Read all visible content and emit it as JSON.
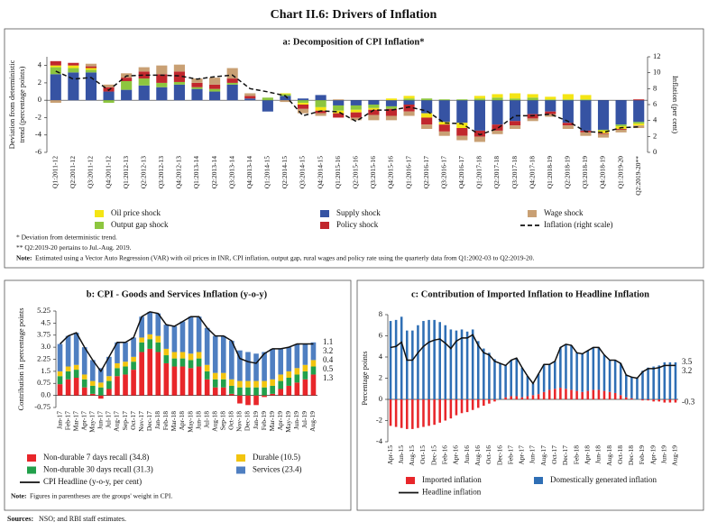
{
  "title": "Chart II.6: Drivers of Inflation",
  "sources_label": "Sources:",
  "sources": "NSO; and RBI staff estimates.",
  "chart_data": [
    {
      "type": "bar",
      "stacked": true,
      "title": "a: Decomposition of CPI Inflation*",
      "y_label": [
        "Deviation from deterministic",
        "trend (percentage points)"
      ],
      "y2_label": "Inflation (per cent)",
      "categories": [
        "Q1:2011-12",
        "Q2:2011-12",
        "Q3:2011-12",
        "Q4:2011-12",
        "Q1:2012-13",
        "Q2:2012-13",
        "Q3:2012-13",
        "Q4:2012-13",
        "Q1:2013-14",
        "Q2:2013-14",
        "Q3:2013-14",
        "Q4:2013-14",
        "Q1:2014-15",
        "Q2:2014-15",
        "Q3:2014-15",
        "Q4:2014-15",
        "Q1:2015-16",
        "Q2:2015-16",
        "Q3:2015-16",
        "Q4:2015-16",
        "Q1:2016-17",
        "Q2:2016-17",
        "Q3:2016-17",
        "Q4:2016-17",
        "Q1:2017-18",
        "Q2:2017-18",
        "Q3:2017-18",
        "Q4:2017-18",
        "Q1:2018-19",
        "Q2:2018-19",
        "Q3:2018-19",
        "Q4:2018-19",
        "Q1:2019-20",
        "Q2:2019-20**"
      ],
      "series": [
        {
          "name": "Supply shock",
          "color": "#3653a3",
          "values": [
            3.0,
            3.2,
            3.2,
            1.0,
            1.2,
            1.7,
            1.5,
            1.8,
            1.3,
            1.0,
            1.8,
            0.2,
            -1.3,
            0.5,
            0.2,
            0.6,
            -0.6,
            -0.6,
            -0.5,
            -0.7,
            -0.5,
            -1.5,
            -2.5,
            -2.6,
            -3.5,
            -2.8,
            -2.4,
            -1.6,
            -1.3,
            -2.6,
            -3.5,
            -3.4,
            -2.8,
            -2.5
          ]
        },
        {
          "name": "Output gap shock",
          "color": "#8dc63f",
          "values": [
            0.8,
            0.5,
            0.3,
            -0.3,
            1.0,
            0.8,
            0.5,
            0.3,
            0.2,
            0.3,
            0.2,
            0.0,
            0.3,
            0.2,
            -0.3,
            -0.8,
            -0.6,
            -0.5,
            -0.4,
            -0.3,
            0.2,
            0.2,
            0.1,
            0.1,
            0.2,
            0.3,
            0.2,
            0.3,
            0.1,
            0.1,
            0.1,
            -0.1,
            -0.2,
            -0.2
          ]
        },
        {
          "name": "Oil price shock",
          "color": "#f4e514",
          "values": [
            0.2,
            0.3,
            0.2,
            0.0,
            0.0,
            0.0,
            0.0,
            0.0,
            0.0,
            0.0,
            0.0,
            0.0,
            0.0,
            0.1,
            -0.2,
            -0.4,
            -0.3,
            -0.3,
            -0.2,
            0.2,
            0.3,
            -0.5,
            -0.3,
            -0.6,
            0.3,
            0.4,
            0.6,
            0.4,
            0.3,
            0.6,
            0.5,
            -0.3,
            -0.3,
            -0.2
          ]
        },
        {
          "name": "Policy shock",
          "color": "#c1272d",
          "values": [
            0.5,
            0.3,
            0.2,
            0.5,
            0.4,
            0.8,
            1.0,
            1.2,
            0.5,
            0.5,
            0.5,
            0.3,
            0.0,
            0.0,
            -0.5,
            -0.3,
            -0.5,
            -0.6,
            -0.6,
            -0.8,
            -0.8,
            -0.8,
            -0.8,
            -0.9,
            -0.7,
            -0.7,
            -0.5,
            -0.5,
            -0.3,
            -0.3,
            -0.2,
            -0.1,
            -0.1,
            0.1
          ]
        },
        {
          "name": "Wage shock",
          "color": "#c9a074",
          "values": [
            -0.3,
            0.0,
            0.3,
            0.3,
            0.5,
            0.5,
            1.0,
            0.8,
            0.5,
            0.8,
            1.2,
            0.3,
            0.0,
            -0.2,
            -0.5,
            -0.3,
            0.1,
            -0.3,
            -0.6,
            -0.5,
            -0.5,
            -0.5,
            -0.5,
            -0.5,
            -0.6,
            -0.4,
            -0.4,
            -0.3,
            -0.3,
            -0.4,
            -0.4,
            -0.4,
            -0.3,
            -0.3
          ]
        },
        {
          "name": "Inflation (right scale)",
          "type": "line",
          "dash": true,
          "axis": "y2",
          "color": "#111111",
          "values": [
            10.2,
            9.2,
            9.4,
            7.8,
            9.6,
            9.7,
            9.7,
            9.6,
            9.2,
            9.5,
            9.7,
            8.0,
            7.6,
            7.1,
            4.6,
            5.2,
            5.1,
            3.9,
            5.3,
            5.3,
            5.7,
            5.2,
            3.7,
            3.6,
            2.2,
            3.0,
            4.6,
            4.6,
            4.8,
            3.9,
            2.6,
            2.5,
            3.1,
            3.2
          ]
        }
      ],
      "ylim": [
        -6,
        5
      ],
      "yticks": [
        -6,
        -4,
        -2,
        0,
        2,
        4
      ],
      "y2lim": [
        0,
        12
      ],
      "y2ticks": [
        0,
        2,
        4,
        6,
        8,
        10,
        12
      ],
      "footnotes": [
        "* Deviation from deterministic trend.",
        "** Q2:2019-20 pertains to Jul.-Aug. 2019."
      ],
      "note_label": "Note:",
      "note": "Estimated using a Vector Auto Regression (VAR) with oil prices in INR, CPI inflation, output gap, rural wages and policy rate using the quarterly data from Q1:2002-03 to Q2:2019-20."
    },
    {
      "type": "bar",
      "stacked": true,
      "end_labels": true,
      "title": "b: CPI - Goods and Services Inflation (y-o-y)",
      "y_label": [
        "Contribution in percentage points"
      ],
      "categories": [
        "Jan-17",
        "Feb-17",
        "Mar-17",
        "Apr-17",
        "May-17",
        "Jun-17",
        "Jul-17",
        "Aug-17",
        "Sep-17",
        "Oct-17",
        "Nov-17",
        "Dec-17",
        "Jan-18",
        "Feb-18",
        "Mar-18",
        "Apr-18",
        "May-18",
        "Jun-18",
        "Jul-18",
        "Aug-18",
        "Sep-18",
        "Oct-18",
        "Nov-18",
        "Dec-18",
        "Jan-19",
        "Feb-19",
        "Mar-19",
        "Apr-19",
        "May-19",
        "Jun-19",
        "Jul-19",
        "Aug-19"
      ],
      "series": [
        {
          "name": "Non-durable 7 days recall (34.8)",
          "color": "#e8262a",
          "values": [
            0.7,
            1.0,
            1.1,
            0.5,
            0.1,
            -0.2,
            0.4,
            1.2,
            1.3,
            1.6,
            2.7,
            2.9,
            2.7,
            2.0,
            1.8,
            1.8,
            1.7,
            1.8,
            1.0,
            0.5,
            0.5,
            0.1,
            -0.5,
            -0.6,
            -0.6,
            -0.1,
            0.1,
            0.4,
            0.6,
            0.8,
            1.0,
            1.3
          ]
        },
        {
          "name": "Non-durable 30 days recall (31.3)",
          "color": "#22a04b",
          "values": [
            0.5,
            0.5,
            0.5,
            0.5,
            0.5,
            0.5,
            0.5,
            0.5,
            0.5,
            0.5,
            0.6,
            0.6,
            0.6,
            0.5,
            0.5,
            0.5,
            0.5,
            0.5,
            0.5,
            0.5,
            0.5,
            0.5,
            0.5,
            0.5,
            0.5,
            0.5,
            0.5,
            0.5,
            0.5,
            0.5,
            0.5,
            0.5
          ]
        },
        {
          "name": "Durable (10.5)",
          "color": "#f2c40f",
          "values": [
            0.3,
            0.3,
            0.3,
            0.3,
            0.3,
            0.3,
            0.3,
            0.3,
            0.3,
            0.3,
            0.3,
            0.3,
            0.4,
            0.4,
            0.4,
            0.4,
            0.4,
            0.4,
            0.4,
            0.4,
            0.4,
            0.4,
            0.4,
            0.4,
            0.4,
            0.4,
            0.4,
            0.4,
            0.4,
            0.4,
            0.4,
            0.4
          ]
        },
        {
          "name": "Services (23.4)",
          "color": "#4f7fc1",
          "values": [
            1.7,
            1.9,
            2.0,
            1.7,
            1.3,
            0.9,
            1.2,
            1.3,
            1.2,
            1.2,
            1.3,
            1.4,
            1.4,
            1.5,
            1.6,
            1.9,
            2.3,
            2.2,
            2.3,
            2.3,
            2.3,
            2.4,
            1.9,
            1.8,
            1.7,
            1.8,
            1.9,
            1.6,
            1.5,
            1.5,
            1.3,
            1.1
          ]
        },
        {
          "name": "CPI Headline (y-o-y, per cent)",
          "type": "line",
          "color": "#111111",
          "values": [
            3.2,
            3.7,
            3.9,
            3.0,
            2.2,
            1.5,
            2.4,
            3.3,
            3.3,
            3.6,
            4.9,
            5.2,
            5.1,
            4.4,
            4.3,
            4.6,
            4.9,
            4.9,
            4.2,
            3.7,
            3.7,
            3.4,
            2.3,
            2.1,
            2.0,
            2.6,
            2.9,
            2.9,
            3.0,
            3.2,
            3.2,
            3.2
          ]
        }
      ],
      "ylim": [
        -0.75,
        5.25
      ],
      "yticks": [
        -0.75,
        {
          "value": 0,
          "label": "0.0"
        },
        0.75,
        1.5,
        2.25,
        {
          "value": 3,
          "label": "3.0"
        },
        3.75,
        4.5,
        5.25
      ],
      "note_label": "Note:",
      "note": "Figures in parentheses are the groups' weight in CPI."
    },
    {
      "type": "bar",
      "stacked": true,
      "end_labels": true,
      "title": "c: Contribution of Imported Inflation to Headline Inflation",
      "y_label": [
        "Percentage points"
      ],
      "categories": [
        "Apr-15",
        null,
        "Jun-15",
        null,
        "Aug-15",
        null,
        "Oct-15",
        null,
        "Dec-15",
        null,
        "Feb-16",
        null,
        "Apr-16",
        null,
        "Jun-16",
        null,
        "Aug-16",
        null,
        "Oct-16",
        null,
        "Dec-16",
        null,
        "Feb-17",
        null,
        "Apr-17",
        null,
        "Jun-17",
        null,
        "Aug-17",
        null,
        "Oct-17",
        null,
        "Dec-17",
        null,
        "Feb-18",
        null,
        "Apr-18",
        null,
        "Jun-18",
        null,
        "Aug-18",
        null,
        "Oct-18",
        null,
        "Dec-18",
        null,
        "Feb-19",
        null,
        "Apr-19",
        null,
        "Jun-19",
        null,
        "Aug-19"
      ],
      "series": [
        {
          "name": "Imported inflation",
          "color": "#e8262a",
          "values": [
            -2.5,
            -2.6,
            -2.7,
            -2.8,
            -2.8,
            -2.7,
            -2.6,
            -2.5,
            -2.4,
            -2.2,
            -2.0,
            -1.8,
            -1.5,
            -1.3,
            -1.2,
            -1.0,
            -0.8,
            -0.6,
            -0.4,
            -0.2,
            0.0,
            0.2,
            0.3,
            0.3,
            0.2,
            0.3,
            0.4,
            0.5,
            0.7,
            0.9,
            1.0,
            1.1,
            1.0,
            0.9,
            0.8,
            0.7,
            0.8,
            0.9,
            0.9,
            0.8,
            0.7,
            0.6,
            0.4,
            0.2,
            0.1,
            0.0,
            -0.1,
            -0.1,
            -0.2,
            -0.2,
            -0.3,
            -0.3,
            -0.3
          ]
        },
        {
          "name": "Domestically generated inflation",
          "color": "#2f6fb5",
          "values": [
            7.4,
            7.5,
            7.8,
            6.5,
            6.5,
            7.0,
            7.4,
            7.5,
            7.5,
            7.3,
            7.0,
            6.6,
            6.5,
            6.6,
            6.4,
            6.6,
            5.5,
            4.8,
            4.4,
            3.8,
            3.4,
            3.0,
            3.4,
            3.6,
            2.8,
            1.9,
            1.1,
            1.9,
            2.6,
            2.4,
            2.6,
            3.8,
            4.2,
            4.2,
            3.6,
            3.6,
            3.8,
            4.0,
            4.0,
            3.4,
            3.0,
            3.1,
            3.0,
            2.1,
            2.0,
            2.0,
            2.7,
            3.0,
            3.1,
            3.2,
            3.5,
            3.5,
            3.5
          ]
        },
        {
          "name": "Headline inflation",
          "type": "line",
          "color": "#111111",
          "values": [
            4.9,
            5.0,
            5.4,
            3.7,
            3.7,
            4.4,
            5.0,
            5.4,
            5.6,
            5.7,
            5.3,
            4.8,
            5.5,
            5.8,
            5.8,
            6.1,
            5.1,
            4.4,
            4.2,
            3.6,
            3.4,
            3.2,
            3.7,
            3.9,
            3.0,
            2.2,
            1.5,
            2.4,
            3.3,
            3.3,
            3.6,
            4.9,
            5.2,
            5.1,
            4.4,
            4.3,
            4.6,
            4.9,
            4.9,
            4.2,
            3.7,
            3.7,
            3.4,
            2.3,
            2.1,
            2.0,
            2.6,
            2.9,
            2.9,
            3.0,
            3.2,
            3.2,
            3.2
          ]
        }
      ],
      "ylim": [
        -4,
        8
      ],
      "yticks": [
        -4,
        -2,
        0,
        2,
        4,
        6,
        8
      ]
    }
  ]
}
